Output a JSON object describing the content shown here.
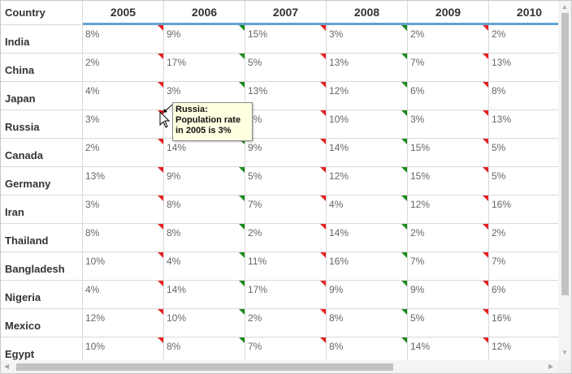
{
  "grid": {
    "header": {
      "country_label": "Country",
      "years": [
        "2005",
        "2006",
        "2007",
        "2008",
        "2009",
        "2010"
      ]
    },
    "rows": [
      {
        "country": "India",
        "values": [
          "8%",
          "9%",
          "15%",
          "3%",
          "2%",
          "2%"
        ],
        "flags": [
          "red",
          "green",
          "red",
          "green",
          "red",
          "red"
        ]
      },
      {
        "country": "China",
        "values": [
          "2%",
          "17%",
          "5%",
          "13%",
          "7%",
          "13%"
        ],
        "flags": [
          "red",
          "green",
          "red",
          "green",
          "red",
          "red"
        ]
      },
      {
        "country": "Japan",
        "values": [
          "4%",
          "3%",
          "13%",
          "12%",
          "6%",
          "8%"
        ],
        "flags": [
          "red",
          "green",
          "red",
          "green",
          "red",
          "green"
        ]
      },
      {
        "country": "Russia",
        "values": [
          "3%",
          "",
          "3%",
          "10%",
          "3%",
          "13%"
        ],
        "flags": [
          "red",
          "green",
          "red",
          "green",
          "red",
          "red"
        ]
      },
      {
        "country": "Canada",
        "values": [
          "2%",
          "14%",
          "9%",
          "14%",
          "15%",
          "5%"
        ],
        "flags": [
          "red",
          "green",
          "red",
          "green",
          "red",
          "red"
        ]
      },
      {
        "country": "Germany",
        "values": [
          "13%",
          "9%",
          "5%",
          "12%",
          "15%",
          "5%"
        ],
        "flags": [
          "red",
          "green",
          "red",
          "green",
          "red",
          "red"
        ]
      },
      {
        "country": "Iran",
        "values": [
          "3%",
          "8%",
          "7%",
          "4%",
          "12%",
          "16%"
        ],
        "flags": [
          "red",
          "green",
          "red",
          "green",
          "red",
          "green"
        ]
      },
      {
        "country": "Thailand",
        "values": [
          "8%",
          "8%",
          "2%",
          "14%",
          "2%",
          "2%"
        ],
        "flags": [
          "red",
          "green",
          "red",
          "green",
          "red",
          "red"
        ]
      },
      {
        "country": "Bangladesh",
        "values": [
          "10%",
          "4%",
          "11%",
          "16%",
          "7%",
          "7%"
        ],
        "flags": [
          "red",
          "green",
          "red",
          "green",
          "red",
          "red"
        ]
      },
      {
        "country": "Nigeria",
        "values": [
          "4%",
          "14%",
          "17%",
          "9%",
          "9%",
          "6%"
        ],
        "flags": [
          "red",
          "green",
          "red",
          "green",
          "red",
          "red"
        ]
      },
      {
        "country": "Mexico",
        "values": [
          "12%",
          "10%",
          "2%",
          "8%",
          "5%",
          "16%"
        ],
        "flags": [
          "red",
          "green",
          "red",
          "green",
          "red",
          "red"
        ]
      },
      {
        "country": "Egypt",
        "values": [
          "10%",
          "8%",
          "7%",
          "8%",
          "14%",
          "12%"
        ],
        "flags": [
          "red",
          "green",
          "red",
          "green",
          "red",
          "red"
        ]
      }
    ]
  },
  "tooltip": {
    "line1": "Russia:",
    "line2": "Population rate",
    "line3": "in 2005 is 3%"
  },
  "colors": {
    "header_accent": "#62a3d2",
    "flag_red": "#e82020",
    "flag_green": "#1a8a1a",
    "tooltip_bg": "#ffffe1"
  },
  "icons": {
    "scroll_up": "triangle-up",
    "scroll_down": "triangle-down",
    "scroll_left": "triangle-left",
    "scroll_right": "triangle-right",
    "cursor": "arrow-pointer"
  }
}
